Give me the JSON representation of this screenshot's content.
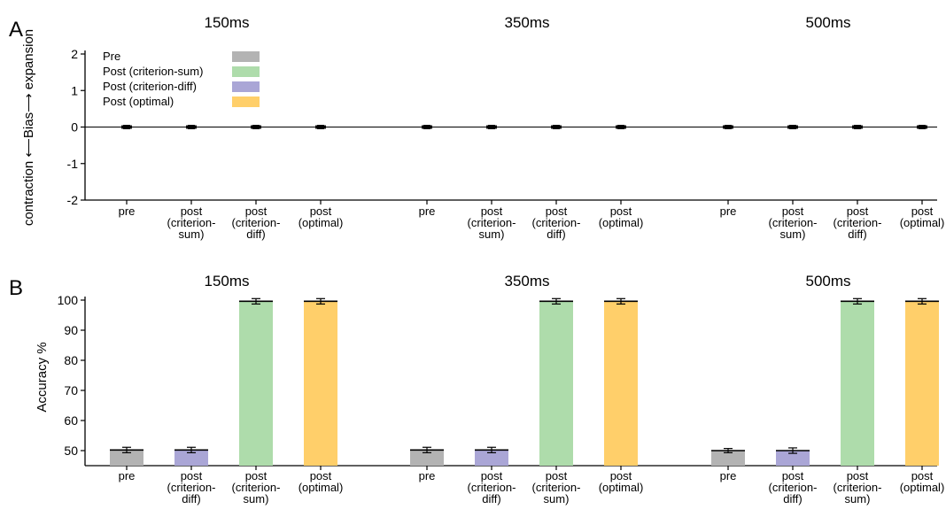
{
  "panel_a_letter": "A",
  "panel_b_letter": "B",
  "conditions": [
    "150ms",
    "350ms",
    "500ms"
  ],
  "x_labels": [
    [
      "pre"
    ],
    [
      "post",
      "(criterion-",
      "sum)"
    ],
    [
      "post",
      "(criterion-",
      "diff)"
    ],
    [
      "post",
      "(optimal)"
    ]
  ],
  "legend": [
    {
      "label": "Pre",
      "color": "#b3b3b3"
    },
    {
      "label": "Post (criterion-sum)",
      "color": "#aedcab"
    },
    {
      "label": "Post (criterion-diff)",
      "color": "#aaa6d6"
    },
    {
      "label": "Post (optimal)",
      "color": "#ffcf6a"
    }
  ],
  "panel_a_ylabel": {
    "left": "contraction",
    "mid": "Bias",
    "right": "expansion"
  },
  "chart_data": [
    {
      "type": "scatter",
      "panel": "A",
      "ylabel": "contraction ⟵ Bias ⟶ expansion",
      "ylim": [
        -2,
        2
      ],
      "yticks": [
        -2,
        -1,
        0,
        1,
        2
      ],
      "groups": [
        "150ms",
        "350ms",
        "500ms"
      ],
      "categories": [
        "pre",
        "post (criterion-sum)",
        "post (criterion-diff)",
        "post (optimal)"
      ],
      "values": [
        [
          0,
          0,
          0,
          0
        ],
        [
          0,
          0,
          0,
          0
        ],
        [
          0,
          0,
          0,
          0
        ]
      ],
      "errors": [
        [
          0.03,
          0.03,
          0.03,
          0.03
        ],
        [
          0.03,
          0.03,
          0.03,
          0.03
        ],
        [
          0.03,
          0.03,
          0.03,
          0.03
        ]
      ],
      "reference_line": 0,
      "legend_position": "top-left"
    },
    {
      "type": "bar",
      "panel": "B",
      "ylabel": "Accuracy %",
      "ylim": [
        45,
        100
      ],
      "yticks": [
        50,
        60,
        70,
        80,
        90,
        100
      ],
      "groups": [
        "150ms",
        "350ms",
        "500ms"
      ],
      "categories": [
        "pre",
        "post (criterion-diff)",
        "post (criterion-sum)",
        "post (optimal)"
      ],
      "category_colors": [
        "#b3b3b3",
        "#aaa6d6",
        "#aedcab",
        "#ffcf6a"
      ],
      "values": [
        [
          50.2,
          50.2,
          99.6,
          99.6
        ],
        [
          50.2,
          50.2,
          99.6,
          99.6
        ],
        [
          50.0,
          50.0,
          99.6,
          99.6
        ]
      ],
      "errors": [
        [
          0.9,
          0.9,
          0.9,
          0.9
        ],
        [
          0.9,
          0.9,
          0.9,
          0.9
        ],
        [
          0.7,
          0.9,
          0.9,
          0.9
        ]
      ]
    }
  ]
}
